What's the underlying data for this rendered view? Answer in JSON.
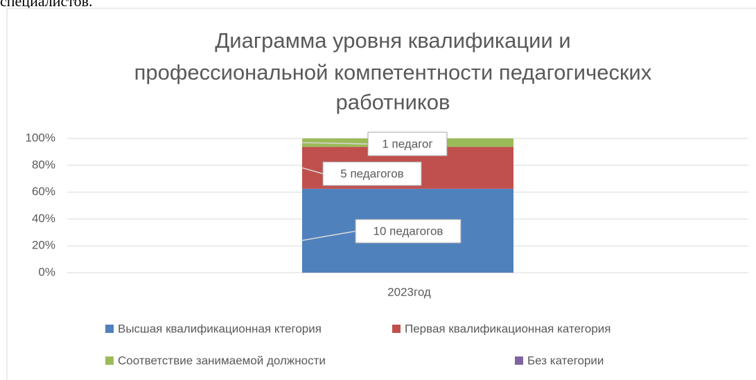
{
  "page_text": "специалистов.",
  "chart_data": {
    "type": "bar",
    "stacking": "percent",
    "title": [
      "Диаграмма  уровня  квалификации  и",
      "профессиональной компетентности педагогических",
      "работников"
    ],
    "categories": [
      "2023год"
    ],
    "series": [
      {
        "name": "Высшая квалификационная  ктегория",
        "color": "#4f81bd",
        "values": [
          10
        ],
        "value_labels": [
          "10  педагогов"
        ]
      },
      {
        "name": "Первая квалификационная категория",
        "color": "#c0504d",
        "values": [
          5
        ],
        "value_labels": [
          "5 педагогов"
        ]
      },
      {
        "name": "Соответствие занимаемой должности",
        "color": "#9bbb59",
        "values": [
          1
        ],
        "value_labels": [
          "1 педагог"
        ]
      },
      {
        "name": "Без категории",
        "color": "#8064a2",
        "values": [
          0
        ]
      }
    ],
    "ylim": [
      0,
      100
    ],
    "yticks": [
      {
        "value": 0,
        "label": "0%"
      },
      {
        "value": 20,
        "label": "20%"
      },
      {
        "value": 40,
        "label": "40%"
      },
      {
        "value": 60,
        "label": "60%"
      },
      {
        "value": 80,
        "label": "80%"
      },
      {
        "value": 100,
        "label": "100%"
      }
    ],
    "grid": true,
    "legend": "bottom"
  }
}
